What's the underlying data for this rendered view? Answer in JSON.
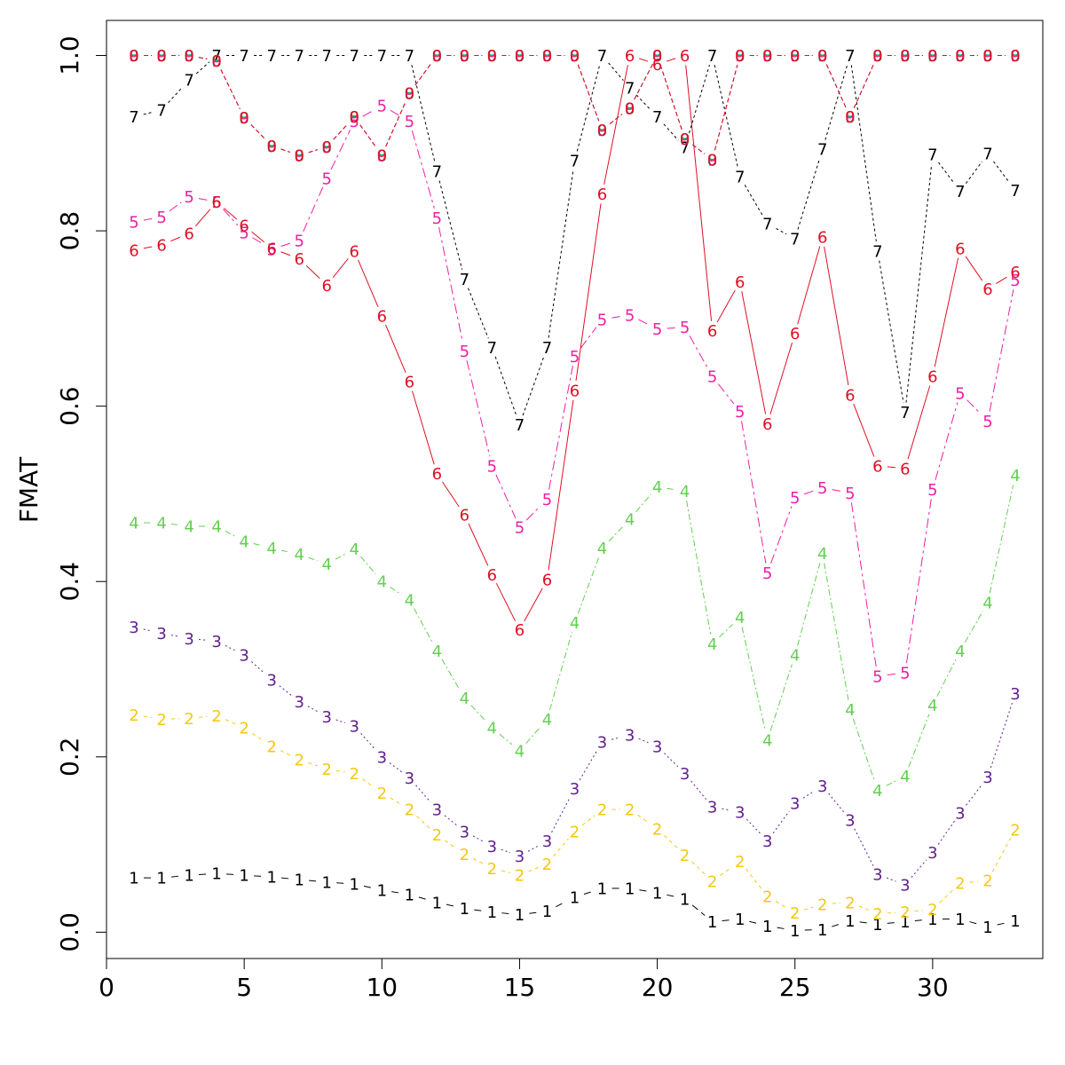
{
  "chart_data": {
    "type": "line",
    "xlabel": "",
    "ylabel": "FMAT",
    "xlim": [
      0,
      34
    ],
    "ylim": [
      -0.03,
      1.04
    ],
    "xticks": [
      0,
      5,
      10,
      15,
      20,
      25,
      30
    ],
    "yticks": [
      0.0,
      0.2,
      0.4,
      0.6,
      0.8,
      1.0
    ],
    "xtick_labels": [
      "0",
      "5",
      "10",
      "15",
      "20",
      "25",
      "30"
    ],
    "ytick_labels": [
      "0.0",
      "0.2",
      "0.4",
      "0.6",
      "0.8",
      "1.0"
    ],
    "grid": false,
    "legend": "none",
    "x": [
      1,
      2,
      3,
      4,
      5,
      6,
      7,
      8,
      9,
      10,
      11,
      12,
      13,
      14,
      15,
      16,
      17,
      18,
      19,
      20,
      21,
      22,
      23,
      24,
      25,
      26,
      27,
      28,
      29,
      30,
      31,
      32,
      33
    ],
    "series": [
      {
        "marker": "1",
        "color": "#000000",
        "dash": "8,5",
        "values": [
          0.062,
          0.062,
          0.065,
          0.067,
          0.065,
          0.063,
          0.06,
          0.057,
          0.055,
          0.048,
          0.043,
          0.034,
          0.027,
          0.023,
          0.02,
          0.024,
          0.04,
          0.05,
          0.05,
          0.045,
          0.038,
          0.012,
          0.015,
          0.007,
          0.002,
          0.003,
          0.013,
          0.009,
          0.012,
          0.015,
          0.015,
          0.006,
          0.013
        ]
      },
      {
        "marker": "2",
        "color": "#f5c710",
        "dash": "4,4",
        "values": [
          0.248,
          0.243,
          0.244,
          0.247,
          0.233,
          0.212,
          0.197,
          0.186,
          0.181,
          0.159,
          0.14,
          0.111,
          0.089,
          0.073,
          0.065,
          0.078,
          0.115,
          0.14,
          0.14,
          0.118,
          0.088,
          0.058,
          0.081,
          0.041,
          0.022,
          0.032,
          0.034,
          0.021,
          0.023,
          0.026,
          0.056,
          0.059,
          0.117
        ]
      },
      {
        "marker": "3",
        "color": "#61208c",
        "dash": "2,3",
        "values": [
          0.348,
          0.341,
          0.335,
          0.332,
          0.316,
          0.288,
          0.263,
          0.246,
          0.235,
          0.2,
          0.176,
          0.14,
          0.115,
          0.098,
          0.087,
          0.104,
          0.164,
          0.217,
          0.225,
          0.212,
          0.181,
          0.143,
          0.137,
          0.104,
          0.147,
          0.167,
          0.128,
          0.066,
          0.054,
          0.091,
          0.136,
          0.177,
          0.272
        ]
      },
      {
        "marker": "4",
        "color": "#61d04f",
        "dash": "7,3,2,3",
        "values": [
          0.467,
          0.467,
          0.463,
          0.463,
          0.446,
          0.438,
          0.431,
          0.42,
          0.437,
          0.4,
          0.379,
          0.321,
          0.267,
          0.233,
          0.207,
          0.243,
          0.353,
          0.438,
          0.471,
          0.508,
          0.503,
          0.329,
          0.359,
          0.219,
          0.316,
          0.432,
          0.254,
          0.162,
          0.178,
          0.259,
          0.321,
          0.376,
          0.521
        ]
      },
      {
        "marker": "5",
        "color": "#ee1fa5",
        "dash": "11,4,3,4",
        "values": [
          0.81,
          0.816,
          0.839,
          0.833,
          0.798,
          0.779,
          0.789,
          0.86,
          0.925,
          0.943,
          0.925,
          0.815,
          0.663,
          0.532,
          0.462,
          0.494,
          0.657,
          0.699,
          0.704,
          0.688,
          0.69,
          0.634,
          0.594,
          0.41,
          0.496,
          0.507,
          0.501,
          0.292,
          0.296,
          0.505,
          0.615,
          0.583,
          0.744
        ]
      },
      {
        "marker": "6",
        "color": "#df0f23",
        "dash": "",
        "values": [
          0.778,
          0.784,
          0.797,
          0.833,
          0.806,
          0.78,
          0.768,
          0.738,
          0.777,
          0.703,
          0.628,
          0.523,
          0.476,
          0.408,
          0.345,
          0.402,
          0.618,
          0.842,
          1.0,
          0.99,
          1.0,
          0.686,
          0.742,
          0.58,
          0.683,
          0.793,
          0.613,
          0.532,
          0.529,
          0.634,
          0.78,
          0.734,
          0.753
        ]
      },
      {
        "marker": "7",
        "color": "#000000",
        "dash": "3,3",
        "values": [
          0.93,
          0.938,
          0.972,
          1.0,
          1.0,
          1.0,
          1.0,
          1.0,
          1.0,
          1.0,
          1.0,
          0.868,
          0.745,
          0.667,
          0.579,
          0.667,
          0.88,
          1.0,
          0.963,
          0.93,
          0.895,
          1.0,
          0.862,
          0.808,
          0.791,
          0.893,
          1.0,
          0.777,
          0.593,
          0.887,
          0.845,
          0.888,
          0.846
        ]
      },
      {
        "marker": "8",
        "color": "#00bb3f",
        "dash": "5,3",
        "values": [
          1.0,
          1.0,
          1.0,
          0.994,
          0.929,
          0.897,
          0.886,
          0.896,
          0.93,
          0.886,
          0.957,
          1.0,
          1.0,
          1.0,
          1.0,
          1.0,
          1.0,
          0.915,
          0.94,
          1.0,
          0.905,
          0.881,
          1.0,
          1.0,
          1.0,
          1.0,
          0.93,
          1.0,
          1.0,
          1.0,
          1.0,
          1.0,
          1.0
        ]
      },
      {
        "marker": "9",
        "color": "#ee1fa5",
        "dash": "5,3",
        "values": [
          1.0,
          1.0,
          1.0,
          0.994,
          0.929,
          0.897,
          0.886,
          0.896,
          0.93,
          0.886,
          0.957,
          1.0,
          1.0,
          1.0,
          1.0,
          1.0,
          1.0,
          0.915,
          0.94,
          1.0,
          0.905,
          0.881,
          1.0,
          1.0,
          1.0,
          1.0,
          0.93,
          1.0,
          1.0,
          1.0,
          1.0,
          1.0,
          1.0
        ]
      },
      {
        "marker": "0",
        "color": "#df0f23",
        "dash": "5,3",
        "values": [
          1.0,
          1.0,
          1.0,
          0.994,
          0.929,
          0.897,
          0.886,
          0.896,
          0.93,
          0.886,
          0.957,
          1.0,
          1.0,
          1.0,
          1.0,
          1.0,
          1.0,
          0.915,
          0.94,
          1.0,
          0.905,
          0.881,
          1.0,
          1.0,
          1.0,
          1.0,
          0.93,
          1.0,
          1.0,
          1.0,
          1.0,
          1.0,
          1.0
        ]
      }
    ]
  }
}
